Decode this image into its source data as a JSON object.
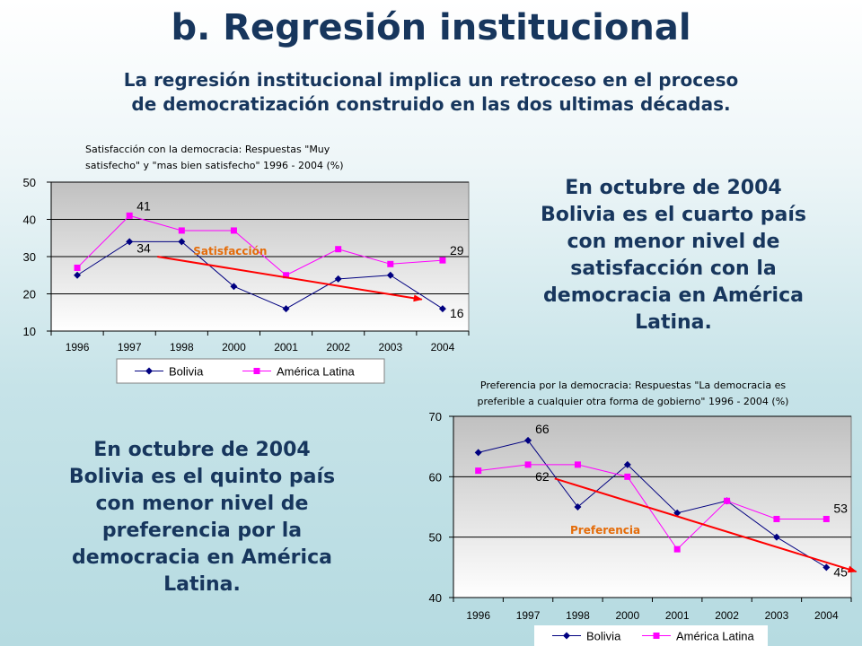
{
  "slide": {
    "title": "b. Regresión institucional",
    "subtitle_line1": "La regresión institucional implica un retroceso en el proceso",
    "subtitle_line2": "de democratización construido en las dos ultimas décadas.",
    "note_right": [
      "En octubre de 2004",
      "Bolivia es el cuarto país",
      "con menor nivel de",
      "satisfacción con la",
      "democracia en América",
      "Latina."
    ],
    "note_left": [
      "En octubre de 2004",
      "Bolivia es el quinto país",
      "con menor nivel de",
      "preferencia por la",
      "democracia en América",
      "Latina."
    ]
  },
  "colors": {
    "title": "#17365d",
    "bolivia": "#000080",
    "latam": "#ff00ff",
    "trend_arrow": "#ff0000",
    "trend_label": "#e46c0a",
    "plot_bg_top": "#c0c0c0",
    "plot_bg_bottom": "#ffffff"
  },
  "chart_data": [
    {
      "type": "line",
      "title_lines": [
        "Satisfacción con la democracia: Respuestas \"Muy",
        "satisfecho\" y \"mas bien satisfecho\" 1996 - 2004 (%)"
      ],
      "categories": [
        "1996",
        "1997",
        "1998",
        "2000",
        "2001",
        "2002",
        "2003",
        "2004"
      ],
      "ylim": [
        10,
        50
      ],
      "yticks": [
        "10",
        "20",
        "30",
        "40",
        "50"
      ],
      "grid": true,
      "legend_position": "bottom",
      "series": [
        {
          "name": "Bolivia",
          "values": [
            25,
            34,
            34,
            22,
            16,
            24,
            25,
            16
          ],
          "marker": "diamond"
        },
        {
          "name": "América Latina",
          "values": [
            27,
            41,
            37,
            37,
            25,
            32,
            28,
            29
          ],
          "marker": "square"
        }
      ],
      "annotations": [
        {
          "text": "41",
          "series": 1,
          "index": 1
        },
        {
          "text": "34",
          "series": 0,
          "index": 1
        },
        {
          "text": "29",
          "series": 1,
          "index": 7
        },
        {
          "text": "16",
          "series": 0,
          "index": 7
        }
      ],
      "trend": {
        "label": "Satisfacción",
        "from": [
          2,
          30
        ],
        "to": [
          6.6,
          18.5
        ]
      }
    },
    {
      "type": "line",
      "title_lines": [
        "Preferencia por la democracia: Respuestas \"La democracia es",
        "preferible a cualquier otra forma de gobierno\" 1996 - 2004 (%)"
      ],
      "categories": [
        "1996",
        "1997",
        "1998",
        "2000",
        "2001",
        "2002",
        "2003",
        "2004"
      ],
      "ylim": [
        40,
        70
      ],
      "yticks": [
        "40",
        "50",
        "60",
        "70"
      ],
      "grid": true,
      "legend_position": "bottom",
      "series": [
        {
          "name": "Bolivia",
          "values": [
            64,
            66,
            55,
            62,
            54,
            56,
            50,
            45
          ],
          "marker": "diamond"
        },
        {
          "name": "América Latina",
          "values": [
            61,
            62,
            62,
            60,
            48,
            56,
            53,
            53
          ],
          "marker": "square"
        }
      ],
      "annotations": [
        {
          "text": "66",
          "series": 0,
          "index": 1
        },
        {
          "text": "62",
          "series": 1,
          "index": 1
        },
        {
          "text": "53",
          "series": 1,
          "index": 7
        },
        {
          "text": "45",
          "series": 0,
          "index": 7
        }
      ],
      "trend": {
        "label": "Preferencia",
        "from": [
          2,
          59.7
        ],
        "to": [
          7.6,
          44.3
        ]
      }
    }
  ]
}
